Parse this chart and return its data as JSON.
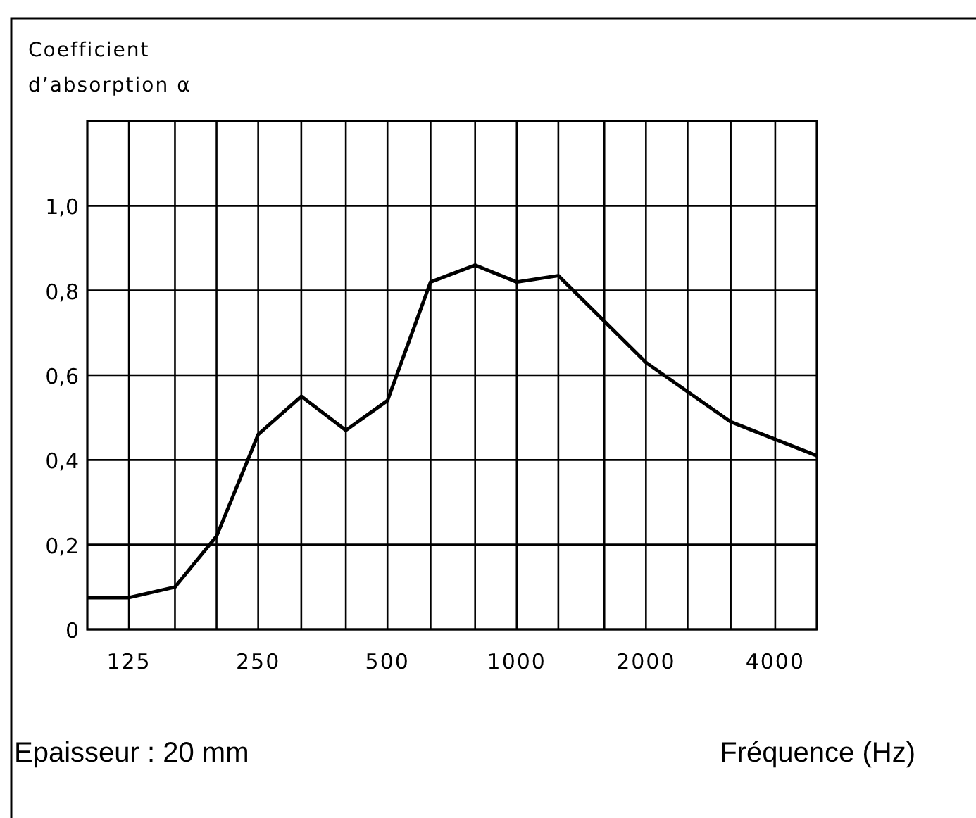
{
  "chart_data": {
    "type": "line",
    "ylabel": "Coefficient d’absorption α",
    "xlabel": "Fréquence (Hz)",
    "annotations": [
      "Epaisseur : 20 mm"
    ],
    "log": "x",
    "grid": true,
    "marker": "none",
    "line_style": "solid",
    "x": [
      100,
      125,
      160,
      200,
      250,
      315,
      400,
      500,
      630,
      800,
      1000,
      1250,
      2000,
      3150,
      5000
    ],
    "series": [
      {
        "color": "#000000",
        "values": [
          0.075,
          0.075,
          0.1,
          0.22,
          0.46,
          0.55,
          0.47,
          0.54,
          0.82,
          0.86,
          0.82,
          0.835,
          0.63,
          0.49,
          0.41
        ]
      }
    ],
    "xlim": [
      100,
      5000
    ],
    "xticks": [
      125,
      {
        "value": 160,
        "label": null
      },
      {
        "value": 200,
        "label": null
      },
      250,
      {
        "value": 315,
        "label": null
      },
      {
        "value": 400,
        "label": null
      },
      500,
      {
        "value": 630,
        "label": null
      },
      {
        "value": 800,
        "label": null
      },
      1000,
      {
        "value": 1250,
        "label": null
      },
      {
        "value": 1600,
        "label": null
      },
      2000,
      {
        "value": 2500,
        "label": null
      },
      {
        "value": 3150,
        "label": null
      },
      4000
    ],
    "ylim": [
      0,
      1.2
    ],
    "yticks": [
      0,
      {
        "value": 0.2,
        "label": "0,2"
      },
      {
        "value": 0.4,
        "label": "0,4"
      },
      {
        "value": 0.6,
        "label": "0,6"
      },
      {
        "value": 0.8,
        "label": "0,8"
      },
      {
        "value": 1,
        "label": "1,0"
      }
    ]
  }
}
